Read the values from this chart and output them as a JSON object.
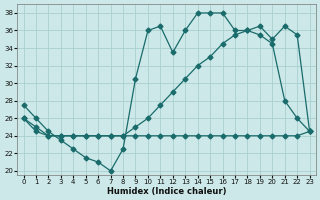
{
  "xlabel": "Humidex (Indice chaleur)",
  "background_color": "#cce8e8",
  "grid_color": "#aacfcf",
  "line_color": "#1a6b6b",
  "xlim": [
    -0.5,
    23.5
  ],
  "ylim": [
    19.5,
    39
  ],
  "yticks": [
    20,
    22,
    24,
    26,
    28,
    30,
    32,
    34,
    36,
    38
  ],
  "xticks": [
    0,
    1,
    2,
    3,
    4,
    5,
    6,
    7,
    8,
    9,
    10,
    11,
    12,
    13,
    14,
    15,
    16,
    17,
    18,
    19,
    20,
    21,
    22,
    23
  ],
  "line1_x": [
    0,
    1,
    2,
    3,
    4,
    5,
    6,
    7,
    8,
    9,
    10,
    11,
    12,
    13,
    14,
    15,
    16,
    17,
    18,
    19,
    20,
    21,
    22,
    23
  ],
  "line1_y": [
    27.5,
    26.0,
    24.5,
    23.5,
    22.5,
    21.5,
    21.0,
    20.0,
    22.5,
    30.5,
    36.0,
    36.5,
    33.5,
    36.0,
    38.0,
    38.0,
    38.0,
    36.0,
    36.0,
    35.5,
    34.5,
    28.0,
    26.0,
    24.5
  ],
  "line2_x": [
    0,
    1,
    2,
    3,
    4,
    5,
    6,
    7,
    8,
    9,
    10,
    11,
    12,
    13,
    14,
    15,
    16,
    17,
    18,
    19,
    20,
    21,
    22,
    23
  ],
  "line2_y": [
    26.0,
    25.0,
    24.0,
    24.0,
    24.0,
    24.0,
    24.0,
    24.0,
    24.0,
    25.0,
    26.0,
    27.5,
    29.0,
    30.5,
    32.0,
    33.0,
    34.5,
    35.5,
    36.0,
    36.5,
    35.0,
    36.5,
    35.5,
    24.5
  ],
  "line3_x": [
    0,
    1,
    2,
    3,
    4,
    5,
    6,
    7,
    8,
    9,
    10,
    11,
    12,
    13,
    14,
    15,
    16,
    17,
    18,
    19,
    20,
    21,
    22,
    23
  ],
  "line3_y": [
    26.0,
    24.5,
    24.0,
    24.0,
    24.0,
    24.0,
    24.0,
    24.0,
    24.0,
    24.0,
    24.0,
    24.0,
    24.0,
    24.0,
    24.0,
    24.0,
    24.0,
    24.0,
    24.0,
    24.0,
    24.0,
    24.0,
    24.0,
    24.5
  ]
}
